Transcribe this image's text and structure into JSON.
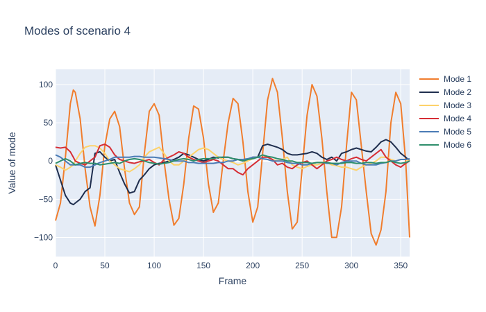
{
  "chart_data": {
    "type": "line",
    "title": "Modes of scenario 4",
    "xlabel": "Frame",
    "ylabel": "Value of mode",
    "xlim": [
      0,
      359
    ],
    "ylim": [
      -125,
      120
    ],
    "x_ticks": [
      0,
      50,
      100,
      150,
      200,
      250,
      300,
      350
    ],
    "y_ticks": [
      -100,
      -50,
      0,
      50,
      100
    ],
    "grid": true,
    "legend_position": "right",
    "x": [
      0,
      5,
      10,
      15,
      18,
      20,
      25,
      30,
      35,
      40,
      45,
      50,
      55,
      60,
      65,
      70,
      75,
      80,
      85,
      90,
      95,
      100,
      105,
      110,
      115,
      120,
      125,
      130,
      135,
      140,
      145,
      150,
      155,
      160,
      165,
      170,
      175,
      180,
      185,
      190,
      195,
      200,
      205,
      210,
      215,
      220,
      225,
      230,
      235,
      240,
      245,
      250,
      255,
      260,
      265,
      270,
      275,
      280,
      285,
      290,
      295,
      300,
      305,
      310,
      315,
      320,
      325,
      330,
      335,
      340,
      345,
      350,
      355,
      359
    ],
    "series": [
      {
        "name": "Mode 1",
        "color": "#f07d2d",
        "values": [
          -78,
          -55,
          5,
          75,
          93,
          90,
          55,
          -10,
          -60,
          -85,
          -45,
          20,
          55,
          65,
          45,
          -10,
          -55,
          -70,
          -60,
          10,
          65,
          75,
          60,
          0,
          -50,
          -84,
          -75,
          -30,
          30,
          72,
          68,
          30,
          -30,
          -67,
          -55,
          0,
          50,
          82,
          75,
          25,
          -40,
          -80,
          -60,
          10,
          80,
          108,
          90,
          30,
          -40,
          -89,
          -80,
          -10,
          60,
          100,
          85,
          30,
          -40,
          -100,
          -100,
          -60,
          20,
          90,
          80,
          20,
          -40,
          -95,
          -110,
          -90,
          -40,
          50,
          90,
          75,
          0,
          -100
        ]
      },
      {
        "name": "Mode 2",
        "color": "#1f2e4e",
        "values": [
          -5,
          -25,
          -45,
          -55,
          -57,
          -55,
          -50,
          -40,
          -35,
          10,
          12,
          5,
          0,
          2,
          -15,
          -30,
          -42,
          -40,
          -25,
          -18,
          -10,
          -5,
          -3,
          -2,
          0,
          2,
          5,
          10,
          8,
          5,
          2,
          0,
          2,
          5,
          4,
          5,
          5,
          3,
          2,
          0,
          2,
          5,
          5,
          20,
          22,
          20,
          18,
          15,
          10,
          8,
          8,
          9,
          10,
          12,
          10,
          5,
          2,
          5,
          0,
          10,
          12,
          15,
          17,
          15,
          13,
          12,
          18,
          25,
          28,
          25,
          18,
          10,
          5,
          0
        ]
      },
      {
        "name": "Mode 3",
        "color": "#fdd26a",
        "values": [
          -5,
          -8,
          -12,
          -8,
          -5,
          0,
          10,
          18,
          20,
          20,
          17,
          10,
          0,
          -5,
          -10,
          -12,
          -14,
          -10,
          -5,
          5,
          12,
          15,
          18,
          10,
          0,
          -5,
          -5,
          0,
          5,
          10,
          15,
          17,
          15,
          10,
          5,
          2,
          0,
          -2,
          -5,
          -3,
          0,
          3,
          5,
          8,
          5,
          2,
          0,
          2,
          5,
          -5,
          -8,
          -10,
          -7,
          -5,
          -5,
          -3,
          -2,
          -5,
          -6,
          -8,
          -8,
          -10,
          -12,
          -8,
          -5,
          -3,
          0,
          5,
          5,
          2,
          0,
          2,
          2,
          0
        ]
      },
      {
        "name": "Mode 4",
        "color": "#d62e35",
        "values": [
          18,
          17,
          18,
          12,
          5,
          0,
          -3,
          -5,
          0,
          5,
          20,
          22,
          18,
          8,
          2,
          0,
          -2,
          -3,
          -1,
          0,
          2,
          -2,
          -5,
          2,
          5,
          8,
          12,
          10,
          5,
          2,
          0,
          -2,
          0,
          2,
          0,
          -5,
          -10,
          -10,
          -15,
          -18,
          -10,
          -5,
          0,
          5,
          5,
          2,
          -5,
          -3,
          -8,
          -10,
          -5,
          -2,
          0,
          -5,
          -10,
          -5,
          0,
          2,
          5,
          2,
          0,
          3,
          5,
          2,
          0,
          5,
          10,
          15,
          5,
          0,
          -5,
          -8,
          -3,
          0
        ]
      },
      {
        "name": "Mode 5",
        "color": "#4a7bb5",
        "values": [
          8,
          5,
          0,
          -5,
          -5,
          -5,
          -5,
          -8,
          -8,
          -5,
          -2,
          0,
          2,
          5,
          5,
          5,
          5,
          6,
          6,
          5,
          5,
          5,
          4,
          3,
          2,
          0,
          0,
          0,
          -2,
          -2,
          -3,
          -3,
          -3,
          -3,
          -2,
          -2,
          0,
          0,
          2,
          2,
          3,
          5,
          5,
          3,
          2,
          0,
          0,
          0,
          -2,
          -3,
          -3,
          -5,
          -5,
          -3,
          -2,
          -2,
          -3,
          -3,
          -5,
          -2,
          0,
          0,
          0,
          -3,
          -5,
          -5,
          -5,
          -3,
          -2,
          0,
          0,
          2,
          2,
          3
        ]
      },
      {
        "name": "Mode 6",
        "color": "#2e8e6b",
        "values": [
          -3,
          0,
          3,
          0,
          -3,
          -5,
          -3,
          -2,
          -3,
          -3,
          -5,
          -4,
          -3,
          -2,
          -3,
          0,
          2,
          3,
          2,
          0,
          -2,
          -3,
          -4,
          -3,
          -2,
          0,
          2,
          3,
          2,
          0,
          2,
          3,
          3,
          3,
          5,
          5,
          5,
          3,
          2,
          0,
          2,
          3,
          5,
          8,
          6,
          5,
          3,
          2,
          0,
          0,
          -2,
          -2,
          -2,
          -3,
          -2,
          -2,
          -2,
          -3,
          -3,
          -3,
          -2,
          -2,
          -3,
          -3,
          -2,
          -2,
          -3,
          -2,
          -2,
          0,
          -2,
          -3,
          -2,
          0
        ]
      }
    ]
  }
}
